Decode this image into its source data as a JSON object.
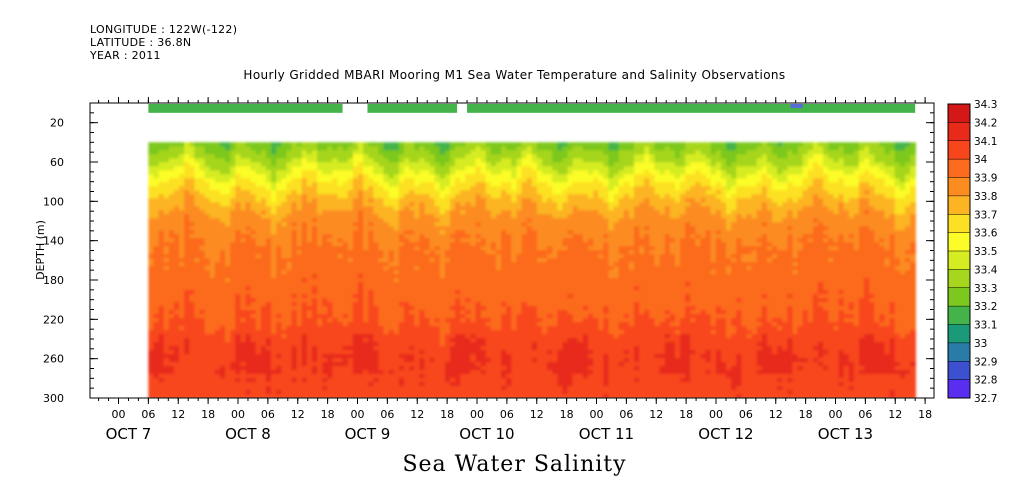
{
  "header": {
    "longitude": "LONGITUDE : 122W(-122)",
    "latitude": "LATITUDE : 36.8N",
    "year": "YEAR : 2011"
  },
  "chart_data": {
    "type": "heatmap",
    "title": "Hourly Gridded MBARI Mooring M1 Sea Water Temperature and Salinity Observations",
    "xlabel": "Sea Water Salinity",
    "ylabel": "DEPTH (m)",
    "y_axis": {
      "range": [
        300,
        0
      ],
      "ticks": [
        20,
        60,
        100,
        140,
        180,
        220,
        260,
        300
      ]
    },
    "x_axis": {
      "hour_ticks": [
        "00",
        "06",
        "12",
        "18",
        "00",
        "06",
        "12",
        "18",
        "00",
        "06",
        "12",
        "18",
        "00",
        "06",
        "12",
        "18",
        "00",
        "06",
        "12",
        "18",
        "00",
        "06",
        "12",
        "18",
        "00",
        "06",
        "12",
        "18",
        "00",
        "06",
        "12",
        "18"
      ],
      "day_labels": [
        "OCT 7",
        "OCT 8",
        "OCT 9",
        "OCT 10",
        "OCT 11",
        "OCT 12",
        "OCT 13"
      ]
    },
    "colorbar": {
      "levels": [
        34.3,
        34.2,
        34.1,
        34,
        33.9,
        33.8,
        33.7,
        33.6,
        33.5,
        33.4,
        33.3,
        33.2,
        33.1,
        33,
        32.9,
        32.8,
        32.7
      ],
      "colors": [
        "#c01818",
        "#d41818",
        "#e82a1a",
        "#f8461c",
        "#fc6a1e",
        "#fc8c20",
        "#fcb422",
        "#fce024",
        "#fcfc28",
        "#d6ec22",
        "#a6d61e",
        "#7cc81e",
        "#44b44a",
        "#1a9a78",
        "#2a7ca8",
        "#3c50d0",
        "#5a2ef0",
        "#8c28f4",
        "#cc28f4"
      ]
    },
    "surface_band": {
      "depth_m": 10,
      "value": 33.2,
      "gaps": [
        "OCT 8 ~21h – OCT 9 ~01h",
        "OCT 9 ~20h – OCT 9 ~23h"
      ]
    },
    "profile_start_depth_m": 40,
    "depth_profile": [
      {
        "depth": 40,
        "value": 33.35
      },
      {
        "depth": 60,
        "value": 33.5
      },
      {
        "depth": 80,
        "value": 33.7
      },
      {
        "depth": 100,
        "value": 33.85
      },
      {
        "depth": 120,
        "value": 33.95
      },
      {
        "depth": 140,
        "value": 34.0
      },
      {
        "depth": 180,
        "value": 34.05
      },
      {
        "depth": 220,
        "value": 34.1
      },
      {
        "depth": 260,
        "value": 34.2
      },
      {
        "depth": 300,
        "value": 34.15
      }
    ]
  }
}
